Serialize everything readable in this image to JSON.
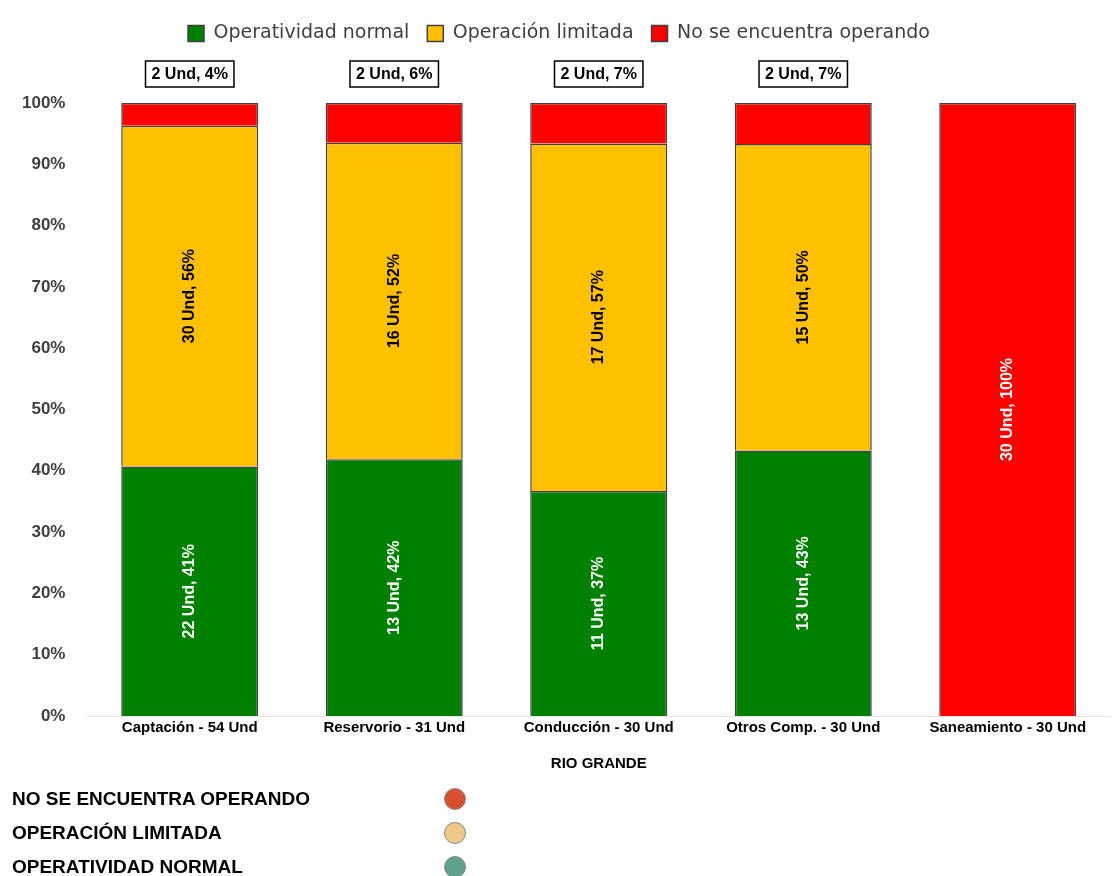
{
  "chart_data": {
    "type": "bar",
    "stacked": true,
    "categories": [
      "Captación - 54 Und",
      "Reservorio - 31 Und",
      "Conducción - 30 Und",
      "Otros Comp. - 30 Und",
      "Saneamiento - 30 Und"
    ],
    "series": [
      {
        "name": "Operatividad normal",
        "color": "#008000",
        "values": [
          40.7,
          41.9,
          36.7,
          43.3,
          0
        ],
        "value_labels": [
          "22 Und, 41%",
          "13 Und, 42%",
          "11 Und, 37%",
          "13 Und, 43%",
          null
        ]
      },
      {
        "name": "Operación limitada",
        "color": "#ffc000",
        "values": [
          55.6,
          51.6,
          56.7,
          50.0,
          0
        ],
        "value_labels": [
          "30 Und, 56%",
          "16 Und, 52%",
          "17 Und, 57%",
          "15 Und, 50%",
          null
        ]
      },
      {
        "name": "No se encuentra operando",
        "color": "#ff0000",
        "values": [
          3.7,
          6.5,
          6.6,
          6.7,
          100
        ],
        "value_labels": [
          "2 Und, 4%",
          "2 Und, 6%",
          "2 Und, 7%",
          "2 Und, 7%",
          "30 Und, 100%"
        ]
      }
    ],
    "ylim": [
      0,
      100
    ],
    "yticks": [
      {
        "value": 0,
        "label": "0%"
      },
      {
        "value": 10,
        "label": "10%"
      },
      {
        "value": 20,
        "label": "20%"
      },
      {
        "value": 30,
        "label": "30%"
      },
      {
        "value": 40,
        "label": "40%"
      },
      {
        "value": 50,
        "label": "50%"
      },
      {
        "value": 60,
        "label": "60%"
      },
      {
        "value": 70,
        "label": "70%"
      },
      {
        "value": 80,
        "label": "80%"
      },
      {
        "value": 90,
        "label": "90%"
      },
      {
        "value": 100,
        "label": "100%"
      }
    ],
    "legend": "top",
    "annotations": [
      "RIO GRANDE",
      "NO SE ENCUENTRA OPERANDO",
      "OPERACIÓN LIMITADA",
      "OPERATIVIDAD NORMAL"
    ]
  }
}
